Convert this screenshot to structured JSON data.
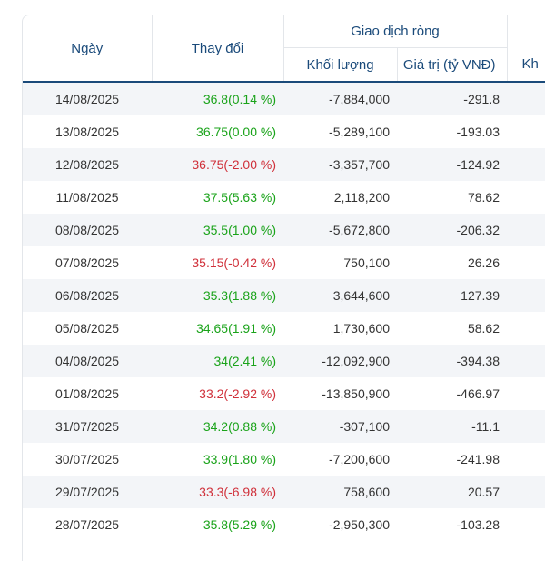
{
  "table": {
    "headers": {
      "date": "Ngày",
      "change": "Thay đổi",
      "net_group": "Giao dịch ròng",
      "volume": "Khối lượng",
      "value": "Giá trị (tỷ VNĐ)",
      "next_group": "",
      "next_sub": "Kh"
    },
    "colors": {
      "up": "#1aa31a",
      "down": "#d0303a",
      "header": "#1a4a7a"
    },
    "rows": [
      {
        "date": "14/08/2025",
        "change": "36.8(0.14 %)",
        "dir": "up",
        "volume": "-7,884,000",
        "value": "-291.8"
      },
      {
        "date": "13/08/2025",
        "change": "36.75(0.00 %)",
        "dir": "up",
        "volume": "-5,289,100",
        "value": "-193.03"
      },
      {
        "date": "12/08/2025",
        "change": "36.75(-2.00 %)",
        "dir": "down",
        "volume": "-3,357,700",
        "value": "-124.92"
      },
      {
        "date": "11/08/2025",
        "change": "37.5(5.63 %)",
        "dir": "up",
        "volume": "2,118,200",
        "value": "78.62"
      },
      {
        "date": "08/08/2025",
        "change": "35.5(1.00 %)",
        "dir": "up",
        "volume": "-5,672,800",
        "value": "-206.32"
      },
      {
        "date": "07/08/2025",
        "change": "35.15(-0.42 %)",
        "dir": "down",
        "volume": "750,100",
        "value": "26.26"
      },
      {
        "date": "06/08/2025",
        "change": "35.3(1.88 %)",
        "dir": "up",
        "volume": "3,644,600",
        "value": "127.39"
      },
      {
        "date": "05/08/2025",
        "change": "34.65(1.91 %)",
        "dir": "up",
        "volume": "1,730,600",
        "value": "58.62"
      },
      {
        "date": "04/08/2025",
        "change": "34(2.41 %)",
        "dir": "up",
        "volume": "-12,092,900",
        "value": "-394.38"
      },
      {
        "date": "01/08/2025",
        "change": "33.2(-2.92 %)",
        "dir": "down",
        "volume": "-13,850,900",
        "value": "-466.97"
      },
      {
        "date": "31/07/2025",
        "change": "34.2(0.88 %)",
        "dir": "up",
        "volume": "-307,100",
        "value": "-11.1"
      },
      {
        "date": "30/07/2025",
        "change": "33.9(1.80 %)",
        "dir": "up",
        "volume": "-7,200,600",
        "value": "-241.98"
      },
      {
        "date": "29/07/2025",
        "change": "33.3(-6.98 %)",
        "dir": "down",
        "volume": "758,600",
        "value": "20.57"
      },
      {
        "date": "28/07/2025",
        "change": "35.8(5.29 %)",
        "dir": "up",
        "volume": "-2,950,300",
        "value": "-103.28"
      }
    ]
  }
}
